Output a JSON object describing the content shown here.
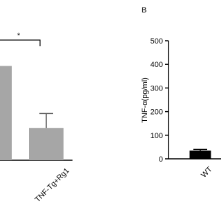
{
  "chart_data": [
    {
      "type": "bar",
      "categories": [
        null,
        "TNF-Tg+Rg1"
      ],
      "values": [
        1.05,
        0.36
      ],
      "errors": [
        null,
        0.16
      ],
      "color": "#a6a6a6",
      "ylim": [
        0,
        1.4
      ],
      "annotation": "*"
    },
    {
      "type": "bar",
      "panel_label": "B",
      "y_label": "TNF-α(pg/ml)",
      "categories": [
        "WT"
      ],
      "values": [
        35
      ],
      "errors": [
        5
      ],
      "color": "#000000",
      "ylim": [
        0,
        500
      ],
      "yticks": [
        0,
        100,
        200,
        300,
        400,
        500
      ]
    }
  ]
}
